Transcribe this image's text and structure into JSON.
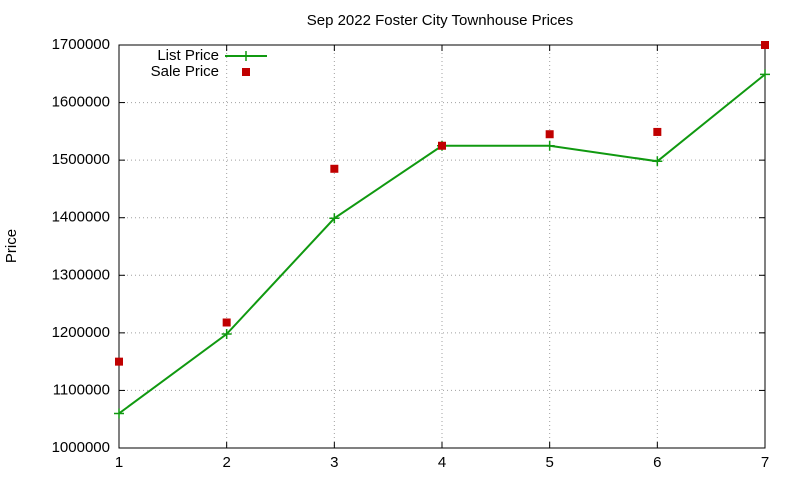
{
  "chart_data": {
    "type": "line",
    "title": "Sep 2022 Foster City Townhouse Prices",
    "y_label": "Price",
    "x": [
      1,
      2,
      3,
      4,
      5,
      6,
      7
    ],
    "series": [
      {
        "name": "List Price",
        "color": "#109910",
        "style": "linespoints",
        "values": [
          1060000,
          1198000,
          1399000,
          1525000,
          1525000,
          1498000,
          1649000
        ]
      },
      {
        "name": "Sale Price",
        "color": "#c00000",
        "style": "points",
        "values": [
          1150000,
          1218000,
          1485000,
          1525000,
          1545000,
          1549000,
          1700000
        ]
      }
    ],
    "xlim": [
      1,
      7
    ],
    "xticks": [
      1,
      2,
      3,
      4,
      5,
      6,
      7
    ],
    "ylim": [
      1000000,
      1700000
    ],
    "yticks": [
      1000000,
      1100000,
      1200000,
      1300000,
      1400000,
      1500000,
      1600000,
      1700000
    ],
    "grid": true,
    "legend": "top-left"
  }
}
